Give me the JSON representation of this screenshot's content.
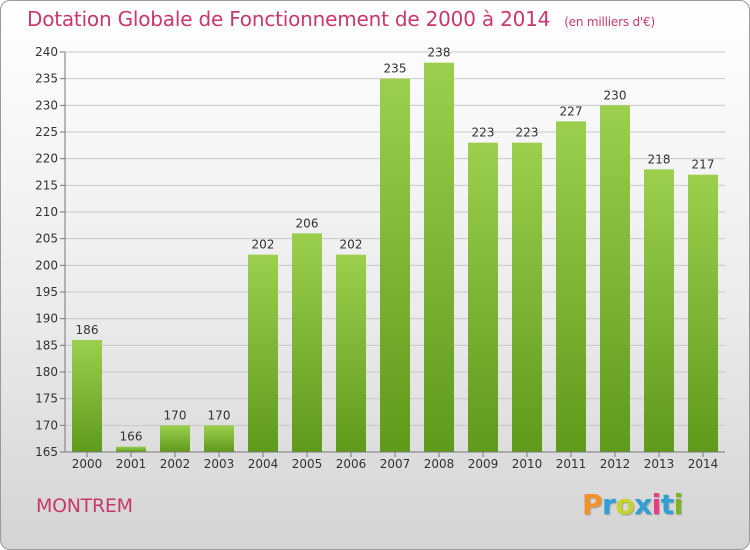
{
  "header": {
    "title": "Dotation Globale de Fonctionnement de 2000 à 2014",
    "subtitle": "(en milliers d'€)"
  },
  "footer": {
    "place": "MONTREM",
    "brand": "Proxiti",
    "brand_colors": [
      "#f0912a",
      "#2f9fd6",
      "#c5d42a",
      "#2f9fd6",
      "#e83d83",
      "#2f9fd6",
      "#7ab51d"
    ]
  },
  "colors": {
    "accent": "#c8386d",
    "bar_light": "#9ccf4e",
    "bar_dark": "#5f9a1a",
    "grid": "#c8c8c8"
  },
  "chart_data": {
    "type": "bar",
    "title": "Dotation Globale de Fonctionnement de 2000 à 2014",
    "subtitle": "(en milliers d'€)",
    "categories": [
      "2000",
      "2001",
      "2002",
      "2003",
      "2004",
      "2005",
      "2006",
      "2007",
      "2008",
      "2009",
      "2010",
      "2011",
      "2012",
      "2013",
      "2014"
    ],
    "values": [
      186,
      166,
      170,
      170,
      202,
      206,
      202,
      235,
      238,
      223,
      223,
      227,
      230,
      218,
      217
    ],
    "ylim": [
      165,
      240
    ],
    "ytick_step": 5,
    "grid": true,
    "data_labels": true
  }
}
